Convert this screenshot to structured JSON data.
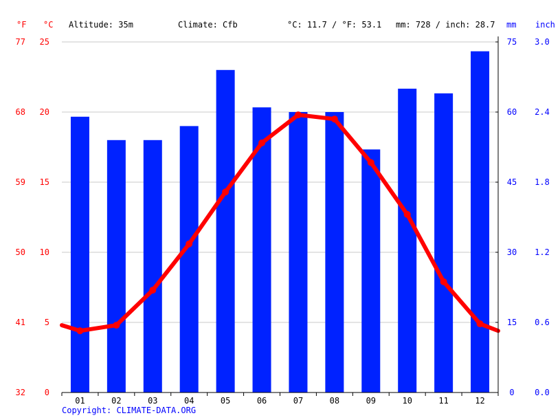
{
  "header": {
    "f_unit": "°F",
    "c_unit": "°C",
    "altitude": "Altitude: 35m",
    "climate": "Climate: Cfb",
    "avg_temp": "°C: 11.7 / °F: 53.1",
    "precip": "mm: 728 / inch: 28.7",
    "mm_unit": "mm",
    "inch_unit": "inch"
  },
  "copyright": "Copyright: CLIMATE-DATA.ORG",
  "chart_data": {
    "type": "bar",
    "categories": [
      "01",
      "02",
      "03",
      "04",
      "05",
      "06",
      "07",
      "08",
      "09",
      "10",
      "11",
      "12"
    ],
    "series": [
      {
        "values": [
          59,
          54,
          54,
          57,
          69,
          61,
          60,
          60,
          52,
          65,
          64,
          73
        ],
        "kind": "bar",
        "unit": "mm",
        "color": "#0022ff"
      },
      {
        "values": [
          4.4,
          4.8,
          7.3,
          10.6,
          14.3,
          17.8,
          19.8,
          19.5,
          16.4,
          12.7,
          7.9,
          4.9
        ],
        "kind": "line",
        "unit": "°C",
        "color": "#ff0000"
      }
    ],
    "left_axis": {
      "c_ticks": [
        0,
        5,
        10,
        15,
        20,
        25
      ],
      "f_ticks": [
        32,
        41,
        50,
        59,
        68,
        77
      ],
      "ylim": [
        0,
        25
      ]
    },
    "right_axis": {
      "mm_ticks": [
        0,
        15,
        30,
        45,
        60,
        75
      ],
      "inch_ticks": [
        "0.0",
        "0.6",
        "1.2",
        "1.8",
        "2.4",
        "3.0"
      ],
      "ylim": [
        0,
        75
      ]
    },
    "grid": true,
    "colors": {
      "temp": "#ff0000",
      "precip": "#0022ff",
      "grid": "#c8c8c8"
    }
  }
}
